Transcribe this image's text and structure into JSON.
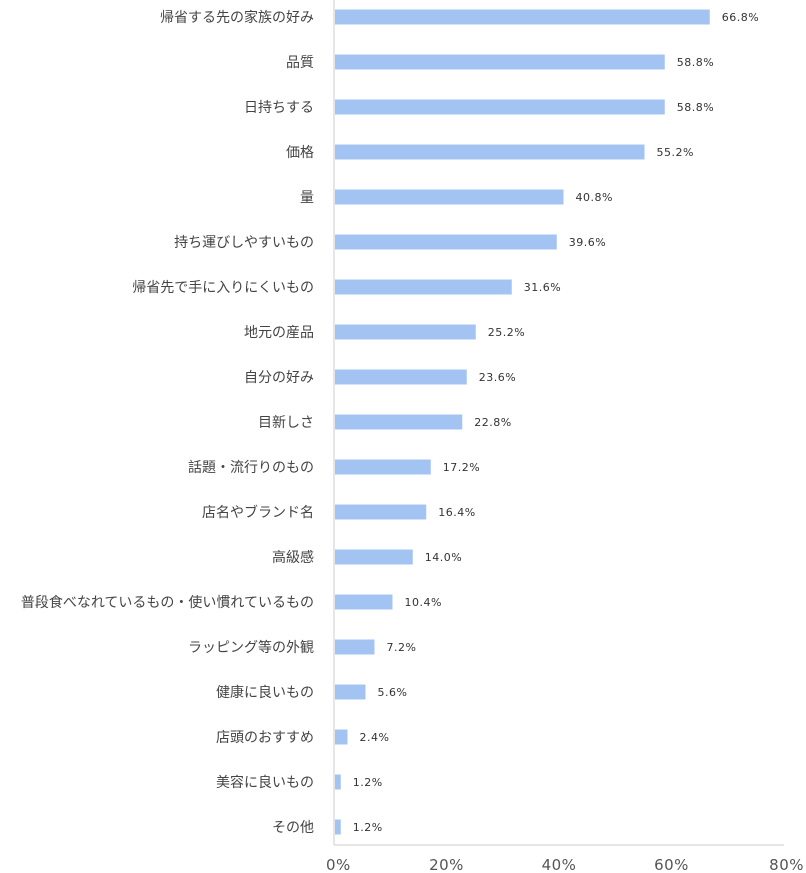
{
  "chart_data": {
    "type": "bar",
    "orientation": "horizontal",
    "categories": [
      "帰省する先の家族の好み",
      "品質",
      "日持ちする",
      "価格",
      "量",
      "持ち運びしやすいもの",
      "帰省先で手に入りにくいもの",
      "地元の産品",
      "自分の好み",
      "目新しさ",
      "話題・流行りのもの",
      "店名やブランド名",
      "高級感",
      "普段食べなれているもの・使い慣れているもの",
      "ラッピング等の外観",
      "健康に良いもの",
      "店頭のおすすめ",
      "美容に良いもの",
      "その他"
    ],
    "values": [
      66.8,
      58.8,
      58.8,
      55.2,
      40.8,
      39.6,
      31.6,
      25.2,
      23.6,
      22.8,
      17.2,
      16.4,
      14.0,
      10.4,
      7.2,
      5.6,
      2.4,
      1.2,
      1.2
    ],
    "value_labels": [
      "66.8%",
      "58.8%",
      "58.8%",
      "55.2%",
      "40.8%",
      "39.6%",
      "31.6%",
      "25.2%",
      "23.6%",
      "22.8%",
      "17.2%",
      "16.4%",
      "14.0%",
      "10.4%",
      "7.2%",
      "5.6%",
      "2.4%",
      "1.2%",
      "1.2%"
    ],
    "xlim": [
      0,
      80
    ],
    "x_ticks": [
      0,
      20,
      40,
      60,
      80
    ],
    "x_tick_labels": [
      "0%",
      "20%",
      "40%",
      "60%",
      "80%"
    ],
    "grid": false,
    "legend": "none",
    "title": "",
    "xlabel": "",
    "ylabel": "",
    "colors": {
      "bar": "#a3c4f3",
      "axis": "#cccccc",
      "label_text": "#444444",
      "value_text": "#333333"
    }
  }
}
